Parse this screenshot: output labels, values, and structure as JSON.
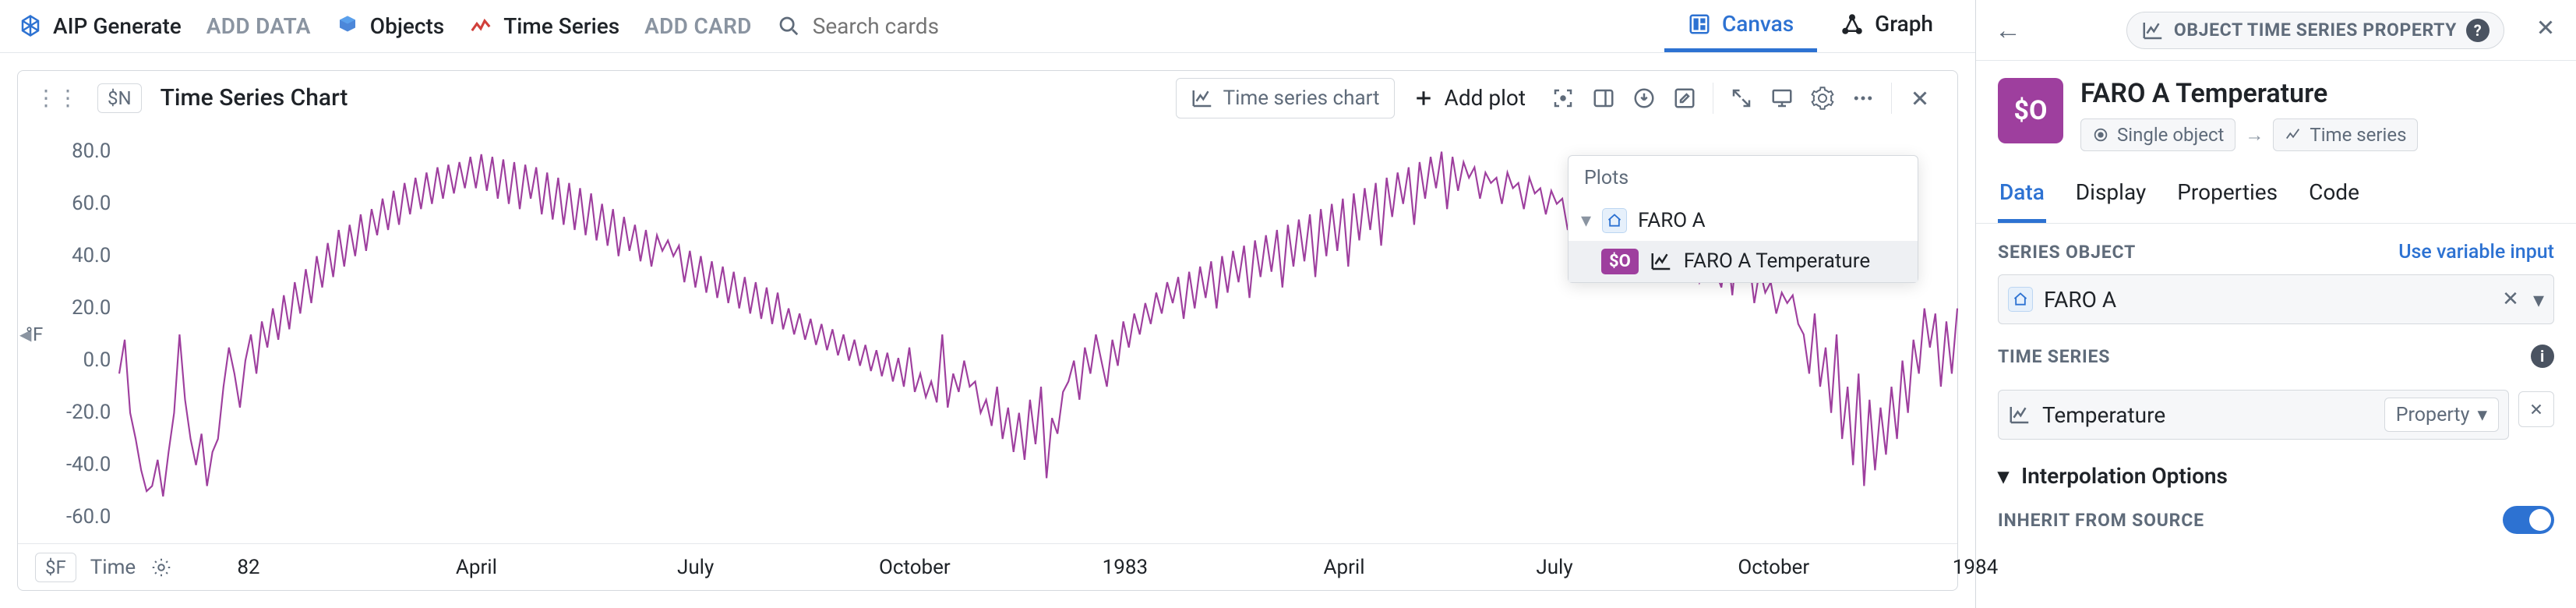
{
  "toolbar": {
    "brand": "AIP Generate",
    "add_data": "ADD DATA",
    "objects": "Objects",
    "time_series": "Time Series",
    "add_card": "ADD CARD",
    "search_placeholder": "Search cards",
    "tabs": {
      "canvas": "Canvas",
      "graph": "Graph",
      "active": "canvas"
    }
  },
  "card": {
    "var_chip": "$N",
    "title": "Time Series Chart",
    "type_label": "Time series chart",
    "add_plot": "Add plot"
  },
  "plots_panel": {
    "title": "Plots",
    "parent": "FARO A",
    "child_badge": "$O",
    "child": "FARO A Temperature"
  },
  "inspector": {
    "tag": "OBJECT TIME SERIES PROPERTY",
    "badge": "$O",
    "title": "FARO A Temperature",
    "crumb_obj": "Single object",
    "crumb_ts": "Time series",
    "tabs": [
      "Data",
      "Display",
      "Properties",
      "Code"
    ],
    "active_tab": 0,
    "series_object_label": "SERIES OBJECT",
    "use_variable": "Use variable input",
    "series_object_value": "FARO A",
    "time_series_label": "TIME SERIES",
    "time_series_value": "Temperature",
    "property_label": "Property",
    "interp_label": "Interpolation Options",
    "inherit_label": "INHERIT FROM SOURCE",
    "inherit_on": true
  },
  "chart": {
    "line_color": "#9e3f9e",
    "y_unit": "°F",
    "y_ticks": [
      80,
      60,
      40,
      20,
      0,
      -20,
      -40,
      -60
    ],
    "y_min": -70,
    "y_max": 90,
    "x_chip": "$F",
    "x_label": "Time",
    "x_ticks": [
      {
        "pos": 0.035,
        "label": "82"
      },
      {
        "pos": 0.165,
        "label": "April"
      },
      {
        "pos": 0.29,
        "label": "July"
      },
      {
        "pos": 0.415,
        "label": "October"
      },
      {
        "pos": 0.535,
        "label": "1983"
      },
      {
        "pos": 0.66,
        "label": "April"
      },
      {
        "pos": 0.78,
        "label": "July"
      },
      {
        "pos": 0.905,
        "label": "October"
      },
      {
        "pos": 1.02,
        "label": "1984"
      }
    ],
    "series": [
      -5,
      8,
      -20,
      -30,
      -42,
      -50,
      -48,
      -38,
      -52,
      -35,
      -20,
      10,
      -15,
      -30,
      -40,
      -28,
      -48,
      -35,
      -30,
      -10,
      5,
      -5,
      -18,
      0,
      10,
      -5,
      15,
      5,
      20,
      8,
      25,
      12,
      30,
      18,
      35,
      22,
      40,
      28,
      45,
      32,
      50,
      36,
      52,
      40,
      56,
      42,
      58,
      48,
      62,
      50,
      65,
      52,
      68,
      56,
      70,
      58,
      72,
      60,
      74,
      62,
      75,
      64,
      76,
      66,
      78,
      66,
      79,
      65,
      78,
      62,
      77,
      60,
      76,
      58,
      75,
      62,
      74,
      56,
      72,
      54,
      70,
      52,
      68,
      50,
      66,
      48,
      64,
      46,
      60,
      44,
      58,
      40,
      55,
      42,
      52,
      38,
      50,
      36,
      48,
      42,
      46,
      40,
      44,
      30,
      42,
      28,
      40,
      26,
      38,
      24,
      36,
      22,
      34,
      20,
      32,
      18,
      30,
      16,
      28,
      14,
      26,
      12,
      20,
      10,
      18,
      8,
      16,
      6,
      14,
      4,
      12,
      2,
      10,
      0,
      8,
      -2,
      6,
      -4,
      4,
      -6,
      3,
      -8,
      1,
      -10,
      5,
      -12,
      -5,
      -14,
      -8,
      -16,
      10,
      -18,
      -5,
      -12,
      0,
      -10,
      -8,
      -20,
      -15,
      -25,
      -10,
      -30,
      -18,
      -35,
      -20,
      -38,
      -15,
      -32,
      -10,
      -45,
      -22,
      -28,
      -12,
      -8,
      0,
      -15,
      5,
      -5,
      10,
      0,
      -10,
      8,
      -2,
      15,
      5,
      18,
      10,
      22,
      14,
      26,
      18,
      30,
      22,
      32,
      16,
      34,
      20,
      36,
      24,
      38,
      20,
      40,
      26,
      42,
      30,
      44,
      24,
      46,
      32,
      48,
      34,
      50,
      28,
      52,
      36,
      54,
      38,
      56,
      32,
      58,
      40,
      60,
      42,
      62,
      36,
      64,
      46,
      66,
      50,
      68,
      44,
      70,
      55,
      72,
      60,
      74,
      52,
      76,
      62,
      78,
      66,
      80,
      58,
      78,
      65,
      76,
      70,
      74,
      62,
      72,
      68,
      70,
      60,
      72,
      66,
      68,
      58,
      70,
      64,
      66,
      56,
      65,
      60,
      62,
      50,
      60,
      56,
      58,
      48,
      56,
      52,
      55,
      46,
      52,
      48,
      50,
      42,
      48,
      44,
      45,
      36,
      44,
      50,
      42,
      35,
      40,
      50,
      38,
      30,
      36,
      46,
      34,
      28,
      44,
      25,
      48,
      30,
      40,
      22,
      35,
      26,
      30,
      18,
      26,
      22,
      25,
      14,
      10,
      -5,
      18,
      -10,
      5,
      -20,
      10,
      -30,
      -10,
      -40,
      -5,
      -48,
      -15,
      -42,
      -18,
      -36,
      -10,
      -30,
      0,
      -20,
      8,
      -5,
      20,
      5,
      18,
      -10,
      15,
      -5,
      20
    ]
  }
}
